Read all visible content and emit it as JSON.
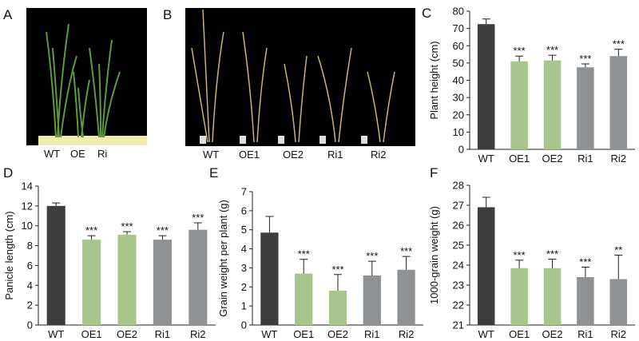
{
  "photos": [
    {
      "panel": "A",
      "labels": [
        "WT",
        "OE",
        "Ri"
      ]
    },
    {
      "panel": "B",
      "labels": [
        "WT",
        "OE1",
        "OE2",
        "Ri1",
        "Ri2"
      ]
    }
  ],
  "chart_data": [
    {
      "panel": "C",
      "type": "bar",
      "ylabel": "Plant height (cm)",
      "categories": [
        "WT",
        "OE1",
        "OE2",
        "Ri1",
        "Ri2"
      ],
      "values": [
        72.5,
        51,
        51.5,
        47.5,
        54
      ],
      "errors": [
        3,
        3,
        3,
        2,
        4
      ],
      "colors": [
        "#3d3d3d",
        "#a9c58e",
        "#a9c58e",
        "#8f9294",
        "#8f9294"
      ],
      "annotations": [
        "***",
        "***",
        "***",
        "***"
      ],
      "ylim": [
        0,
        80
      ],
      "yticks": [
        0,
        10,
        20,
        30,
        40,
        50,
        60,
        70,
        80
      ]
    },
    {
      "panel": "D",
      "type": "bar",
      "ylabel": "Panicle length (cm)",
      "categories": [
        "WT",
        "OE1",
        "OE2",
        "Ri1",
        "Ri2"
      ],
      "values": [
        12,
        8.6,
        9.1,
        8.6,
        9.6
      ],
      "errors": [
        0.3,
        0.4,
        0.3,
        0.4,
        0.7
      ],
      "colors": [
        "#3d3d3d",
        "#a9c58e",
        "#a9c58e",
        "#8f9294",
        "#8f9294"
      ],
      "annotations": [
        "***",
        "***",
        "***",
        "***"
      ],
      "ylim": [
        0,
        14
      ],
      "yticks": [
        0,
        2,
        4,
        6,
        8,
        10,
        12,
        14
      ]
    },
    {
      "panel": "E",
      "type": "bar",
      "ylabel": "Grain weight per plant (g)",
      "categories": [
        "WT",
        "OE1",
        "OE2",
        "Ri1",
        "Ri2"
      ],
      "values": [
        4.85,
        2.7,
        1.8,
        2.6,
        2.9
      ],
      "errors": [
        0.85,
        0.75,
        0.85,
        0.75,
        0.7
      ],
      "colors": [
        "#3d3d3d",
        "#a9c58e",
        "#a9c58e",
        "#8f9294",
        "#8f9294"
      ],
      "annotations": [
        "***",
        "***",
        "***",
        "***"
      ],
      "ylim": [
        0,
        7
      ],
      "yticks": [
        0,
        1,
        2,
        3,
        4,
        5,
        6,
        7
      ]
    },
    {
      "panel": "F",
      "type": "bar",
      "ylabel": "1000-grain weight (g)",
      "categories": [
        "WT",
        "OE1",
        "OE2",
        "Ri1",
        "Ri2"
      ],
      "values": [
        26.9,
        23.85,
        23.85,
        23.4,
        23.3
      ],
      "errors": [
        0.5,
        0.4,
        0.45,
        0.5,
        1.2
      ],
      "colors": [
        "#3d3d3d",
        "#a9c58e",
        "#a9c58e",
        "#8f9294",
        "#8f9294"
      ],
      "annotations": [
        "***",
        "***",
        "***",
        "**"
      ],
      "ylim": [
        21,
        28
      ],
      "yticks": [
        21,
        22,
        23,
        24,
        25,
        26,
        27,
        28
      ]
    }
  ]
}
